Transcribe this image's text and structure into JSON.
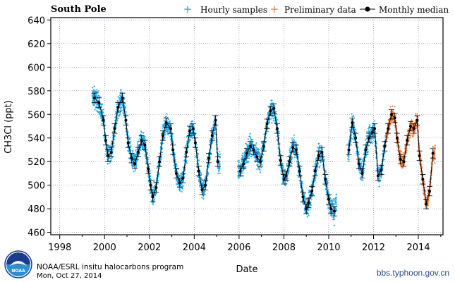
{
  "colors": {
    "hourly": "#1ea7e8",
    "preliminary": "#f07b3c",
    "median": "#000000",
    "grid": "#8080c0",
    "watermark": "#2a4f8a"
  },
  "chart_data": {
    "type": "scatter",
    "title": "South Pole",
    "xlabel": "Date",
    "ylabel": "CH3Cl (ppt)",
    "xlim": [
      1997.6,
      2015.1
    ],
    "ylim": [
      458,
      642
    ],
    "xticks": [
      1998,
      2000,
      2002,
      2004,
      2006,
      2008,
      2010,
      2012,
      2014
    ],
    "yticks": [
      460,
      480,
      500,
      520,
      540,
      560,
      580,
      600,
      620,
      640
    ],
    "grid": true,
    "legend": {
      "position": "top-right",
      "entries": [
        "Hourly samples",
        "Preliminary data",
        "Monthly median"
      ]
    },
    "series": [
      {
        "name": "Monthly median",
        "style": "line-with-markers",
        "x": [
          1999.55,
          1999.75,
          1999.95,
          2000.05,
          2000.15,
          2000.3,
          2000.45,
          2000.6,
          2000.8,
          2000.95,
          2001.05,
          2001.2,
          2001.35,
          2001.5,
          2001.65,
          2001.8,
          2001.95,
          2002.05,
          2002.15,
          2002.3,
          2002.45,
          2002.6,
          2002.75,
          2002.95,
          2003.05,
          2003.2,
          2003.35,
          2003.5,
          2003.65,
          2003.8,
          2003.95,
          2004.05,
          2004.2,
          2004.35,
          2004.5,
          2004.65,
          2004.8,
          2004.95,
          2005.05,
          2006.05,
          2006.2,
          2006.35,
          2006.5,
          2006.65,
          2006.8,
          2006.95,
          2007.1,
          2007.25,
          2007.4,
          2007.55,
          2007.7,
          2007.85,
          2008.0,
          2008.1,
          2008.25,
          2008.4,
          2008.55,
          2008.7,
          2008.85,
          2009.0,
          2009.1,
          2009.25,
          2009.4,
          2009.55,
          2009.7,
          2009.85,
          2010.0,
          2010.1,
          2010.25,
          2010.9,
          2011.05,
          2011.2,
          2011.35,
          2011.5,
          2011.65,
          2011.8,
          2011.95,
          2012.05,
          2012.2,
          2012.35,
          2012.5,
          2012.65,
          2012.8,
          2012.95,
          2013.05,
          2013.2,
          2013.35,
          2013.5,
          2013.65,
          2013.8,
          2013.95,
          2014.05,
          2014.2,
          2014.35,
          2014.5,
          2014.65
        ],
        "y": [
          574,
          570,
          555,
          538,
          525,
          528,
          548,
          566,
          574,
          555,
          536,
          523,
          518,
          528,
          538,
          534,
          514,
          500,
          490,
          498,
          520,
          542,
          553,
          548,
          530,
          510,
          502,
          506,
          528,
          546,
          548,
          536,
          512,
          496,
          500,
          523,
          542,
          555,
          520,
          512,
          518,
          527,
          533,
          530,
          524,
          520,
          533,
          552,
          563,
          565,
          548,
          521,
          505,
          508,
          520,
          532,
          530,
          512,
          490,
          480,
          485,
          495,
          512,
          525,
          528,
          505,
          488,
          480,
          478,
          530,
          553,
          540,
          518,
          510,
          530,
          540,
          545,
          548,
          508,
          513,
          533,
          548,
          560,
          557,
          540,
          522,
          520,
          538,
          550,
          548,
          555,
          525,
          505,
          484,
          495,
          527
        ],
        "yerr": [
          4,
          4,
          4,
          4,
          5,
          4,
          4,
          4,
          4,
          4,
          4,
          4,
          4,
          4,
          4,
          4,
          4,
          4,
          4,
          4,
          4,
          4,
          4,
          4,
          4,
          4,
          4,
          4,
          4,
          4,
          4,
          4,
          4,
          4,
          4,
          4,
          4,
          4,
          4,
          4,
          4,
          4,
          4,
          4,
          4,
          4,
          4,
          4,
          4,
          4,
          4,
          4,
          4,
          4,
          4,
          4,
          4,
          4,
          4,
          4,
          4,
          4,
          4,
          4,
          4,
          4,
          4,
          4,
          4,
          4,
          4,
          4,
          4,
          4,
          4,
          4,
          4,
          4,
          4,
          4,
          4,
          4,
          4,
          4,
          4,
          4,
          4,
          4,
          4,
          4,
          4,
          4,
          4,
          4,
          4,
          4
        ]
      },
      {
        "name": "Hourly samples",
        "style": "scatter-band",
        "x_range": [
          1999.45,
          2012.55
        ],
        "gaps": [
          [
            2005.15,
            2005.95
          ],
          [
            2010.35,
            2010.85
          ]
        ],
        "spread": 13
      },
      {
        "name": "Preliminary data",
        "style": "scatter-band",
        "x_range": [
          2012.55,
          2014.75
        ],
        "spread": 10
      }
    ]
  },
  "credit": {
    "line1": "NOAA/ESRL insitu halocarbons program",
    "line2": "Mon, Oct 27, 2014",
    "logo_text": "NOAA"
  },
  "watermark": "bbs.typhoon.gov.cn"
}
